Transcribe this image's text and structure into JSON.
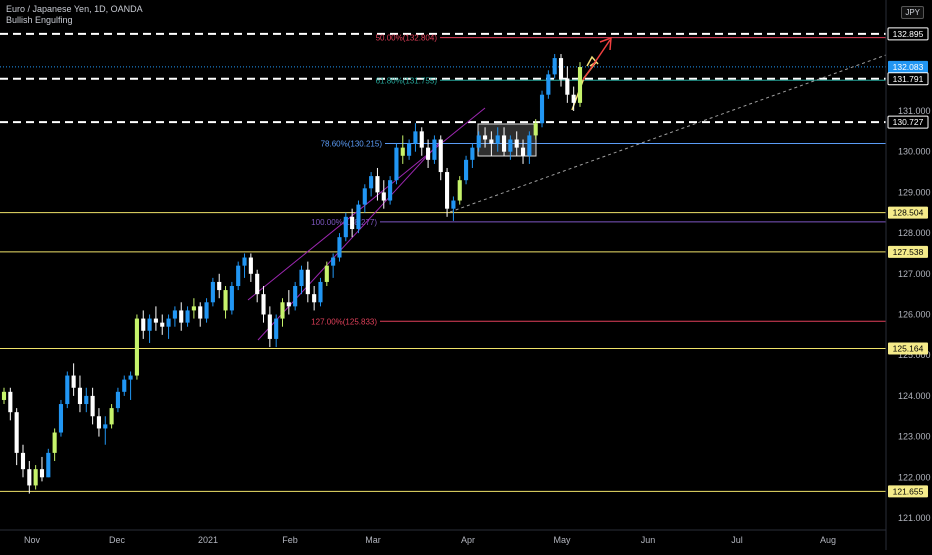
{
  "header": {
    "symbol_line": "Euro / Japanese Yen, 1D, OANDA",
    "indicator_line": "Bullish Engulfing",
    "currency": "JPY"
  },
  "colors": {
    "background": "#000000",
    "candle_up": "#2196f3",
    "candle_down": "#ffffff",
    "engulfing": "#c6f36b",
    "horizontal_levels": "#f0e26a",
    "dashed_levels": "#ffffff",
    "channel": "#9c27b0",
    "fib_786": "#5b9cf6",
    "fib_100": "#7e57c2",
    "fib_127": "#e0405a",
    "arrow_up_yellow": "#f5e27a",
    "arrow_up_red": "#f04040",
    "last_price": "#2196f3"
  },
  "chart_data": {
    "type": "candlestick",
    "x_ticks": [
      "Nov",
      "Dec",
      "2021",
      "Feb",
      "Mar",
      "Apr",
      "May",
      "Jun",
      "Jul",
      "Aug"
    ],
    "y_ticks": [
      121.0,
      122.0,
      123.0,
      124.0,
      125.0,
      126.0,
      127.0,
      128.0,
      129.0,
      130.0,
      131.0
    ],
    "ylim": [
      120.7,
      133.4
    ],
    "price_labels": [
      {
        "value": 132.895,
        "text": "132.895",
        "style": "dashed"
      },
      {
        "value": 132.083,
        "text": "132.083",
        "style": "last"
      },
      {
        "value": 131.791,
        "text": "131.791",
        "style": "dashed"
      },
      {
        "value": 130.727,
        "text": "130.727",
        "style": "dashed"
      },
      {
        "value": 128.504,
        "text": "128.504",
        "style": "yellow"
      },
      {
        "value": 127.538,
        "text": "127.538",
        "style": "yellow"
      },
      {
        "value": 125.164,
        "text": "125.164",
        "style": "yellow"
      },
      {
        "value": 121.655,
        "text": "121.655",
        "style": "yellow"
      }
    ],
    "fib_labels": [
      {
        "value": 132.804,
        "text": "50.00%(132.804)",
        "color": "#e0405a"
      },
      {
        "value": 131.755,
        "text": "61.80%(131.755)",
        "color": "#26a69a"
      },
      {
        "value": 130.2,
        "text": "78.60%(130.215)",
        "color": "#5b9cf6"
      },
      {
        "value": 128.277,
        "text": "100.00%(128.277)",
        "color": "#7e57c2"
      },
      {
        "value": 125.833,
        "text": "127.00%(125.833)",
        "color": "#e0405a"
      }
    ],
    "candles": [
      [
        123.9,
        124.2,
        123.8,
        124.1
      ],
      [
        124.1,
        124.2,
        123.4,
        123.6
      ],
      [
        123.6,
        123.7,
        122.3,
        122.6
      ],
      [
        122.6,
        122.8,
        122.0,
        122.2
      ],
      [
        122.2,
        122.4,
        121.6,
        121.8
      ],
      [
        121.8,
        122.3,
        121.7,
        122.2
      ],
      [
        122.2,
        122.5,
        121.9,
        122.0
      ],
      [
        122.0,
        122.7,
        122.0,
        122.6
      ],
      [
        122.6,
        123.2,
        122.4,
        123.1
      ],
      [
        123.1,
        123.9,
        123.0,
        123.8
      ],
      [
        123.8,
        124.6,
        123.7,
        124.5
      ],
      [
        124.5,
        124.8,
        124.0,
        124.2
      ],
      [
        124.2,
        124.5,
        123.6,
        123.8
      ],
      [
        123.8,
        124.2,
        123.6,
        124.0
      ],
      [
        124.0,
        124.2,
        123.3,
        123.5
      ],
      [
        123.5,
        123.7,
        123.0,
        123.2
      ],
      [
        123.2,
        123.5,
        122.8,
        123.3
      ],
      [
        123.3,
        123.8,
        123.2,
        123.7
      ],
      [
        123.7,
        124.2,
        123.6,
        124.1
      ],
      [
        124.1,
        124.5,
        124.0,
        124.4
      ],
      [
        124.4,
        124.6,
        123.9,
        124.5
      ],
      [
        124.5,
        126.0,
        124.4,
        125.9
      ],
      [
        125.9,
        126.1,
        125.4,
        125.6
      ],
      [
        125.6,
        126.0,
        125.3,
        125.9
      ],
      [
        125.9,
        126.2,
        125.6,
        125.8
      ],
      [
        125.8,
        126.0,
        125.5,
        125.7
      ],
      [
        125.7,
        126.0,
        125.4,
        125.9
      ],
      [
        125.9,
        126.2,
        125.7,
        126.1
      ],
      [
        126.1,
        126.3,
        125.6,
        125.8
      ],
      [
        125.8,
        126.2,
        125.7,
        126.1
      ],
      [
        126.1,
        126.4,
        125.9,
        126.2
      ],
      [
        126.2,
        126.3,
        125.7,
        125.9
      ],
      [
        125.9,
        126.4,
        125.8,
        126.3
      ],
      [
        126.3,
        126.9,
        126.2,
        126.8
      ],
      [
        126.8,
        127.0,
        126.4,
        126.6
      ],
      [
        126.6,
        126.7,
        125.9,
        126.1
      ],
      [
        126.1,
        126.8,
        126.0,
        126.7
      ],
      [
        126.7,
        127.3,
        126.6,
        127.2
      ],
      [
        127.2,
        127.5,
        126.9,
        127.4
      ],
      [
        127.4,
        127.5,
        126.8,
        127.0
      ],
      [
        127.0,
        127.1,
        126.3,
        126.5
      ],
      [
        126.5,
        126.7,
        125.8,
        126.0
      ],
      [
        126.0,
        126.2,
        125.2,
        125.4
      ],
      [
        125.4,
        126.0,
        125.2,
        125.9
      ],
      [
        125.9,
        126.4,
        125.7,
        126.3
      ],
      [
        126.3,
        126.6,
        126.0,
        126.2
      ],
      [
        126.2,
        126.8,
        126.1,
        126.7
      ],
      [
        126.7,
        127.2,
        126.5,
        127.1
      ],
      [
        127.1,
        127.3,
        126.3,
        126.5
      ],
      [
        126.5,
        126.7,
        126.1,
        126.3
      ],
      [
        126.3,
        126.9,
        126.2,
        126.8
      ],
      [
        126.8,
        127.3,
        126.7,
        127.2
      ],
      [
        127.2,
        127.5,
        126.9,
        127.4
      ],
      [
        127.4,
        128.0,
        127.3,
        127.9
      ],
      [
        127.9,
        128.5,
        127.8,
        128.4
      ],
      [
        128.4,
        128.6,
        127.9,
        128.1
      ],
      [
        128.1,
        128.8,
        128.0,
        128.7
      ],
      [
        128.7,
        129.2,
        128.5,
        129.1
      ],
      [
        129.1,
        129.5,
        128.9,
        129.4
      ],
      [
        129.4,
        129.6,
        128.8,
        129.0
      ],
      [
        129.0,
        129.3,
        128.6,
        128.8
      ],
      [
        128.8,
        129.4,
        128.7,
        129.3
      ],
      [
        129.3,
        130.2,
        129.2,
        130.1
      ],
      [
        130.1,
        130.4,
        129.7,
        129.9
      ],
      [
        129.9,
        130.3,
        129.8,
        130.2
      ],
      [
        130.2,
        130.7,
        130.0,
        130.5
      ],
      [
        130.5,
        130.6,
        129.9,
        130.1
      ],
      [
        130.1,
        130.3,
        129.6,
        129.8
      ],
      [
        129.8,
        130.4,
        129.7,
        130.3
      ],
      [
        130.3,
        130.4,
        129.3,
        129.5
      ],
      [
        129.5,
        129.6,
        128.4,
        128.6
      ],
      [
        128.6,
        128.9,
        128.3,
        128.8
      ],
      [
        128.8,
        129.4,
        128.7,
        129.3
      ],
      [
        129.3,
        129.9,
        129.2,
        129.8
      ],
      [
        129.8,
        130.2,
        129.6,
        130.1
      ],
      [
        130.1,
        130.5,
        130.0,
        130.4
      ],
      [
        130.4,
        130.6,
        130.1,
        130.3
      ],
      [
        130.3,
        130.5,
        129.9,
        130.2
      ],
      [
        130.2,
        130.6,
        130.0,
        130.4
      ],
      [
        130.4,
        130.6,
        129.9,
        130.0
      ],
      [
        130.0,
        130.4,
        129.8,
        130.3
      ],
      [
        130.3,
        130.5,
        129.9,
        130.1
      ],
      [
        130.1,
        130.3,
        129.7,
        129.9
      ],
      [
        129.9,
        130.5,
        129.7,
        130.4
      ],
      [
        130.4,
        130.8,
        130.3,
        130.7
      ],
      [
        130.7,
        131.5,
        130.6,
        131.4
      ],
      [
        131.4,
        132.0,
        131.3,
        131.9
      ],
      [
        131.9,
        132.4,
        131.8,
        132.3
      ],
      [
        132.3,
        132.4,
        131.6,
        131.8
      ],
      [
        131.8,
        132.1,
        131.2,
        131.4
      ],
      [
        131.4,
        131.6,
        131.0,
        131.2
      ],
      [
        131.2,
        132.2,
        131.1,
        132.08
      ]
    ],
    "engulfing_indices": [
      0,
      5,
      8,
      17,
      21,
      30,
      35,
      44,
      51,
      63,
      72,
      84,
      91
    ]
  }
}
